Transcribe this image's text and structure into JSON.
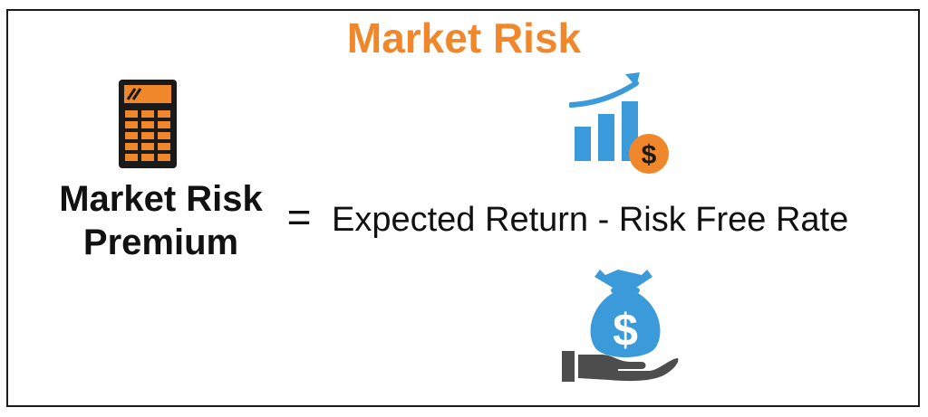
{
  "title": "Market Risk",
  "formula": {
    "lhs_line1": "Market Risk",
    "lhs_line2": "Premium",
    "equals": "=",
    "rhs": "Expected Return - Risk Free Rate"
  },
  "icons": {
    "calculator": "calculator-icon",
    "growth": "bar-chart-growth-icon",
    "dollar_coin": "dollar-coin-icon",
    "money_bag": "money-bag-icon",
    "hand": "hand-icon",
    "money_bag_symbol": "$",
    "coin_symbol": "$"
  },
  "colors": {
    "title": "#f0882b",
    "calculator_body": "#1a1a1a",
    "calculator_accent": "#f0882b",
    "chart_blue": "#3b9ad9",
    "coin_orange": "#f0882b",
    "hand_gray": "#4d4d4d",
    "frame": "#1a1a1a",
    "text": "#111111"
  }
}
